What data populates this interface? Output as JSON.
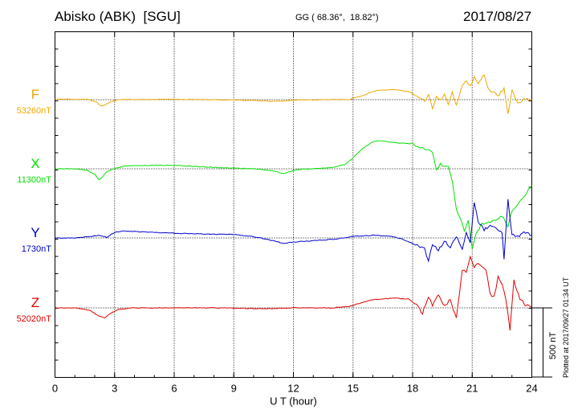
{
  "header": {
    "station": "Abisko (ABK)  [SGU]",
    "coords": "GG ( 68.36°,  18.82°)",
    "date": "2017/08/27"
  },
  "footer_note": "Plotted at 2017/09/27 01:34 UT",
  "colors": {
    "F": "#f0a800",
    "X": "#00e000",
    "Y": "#0000d0",
    "Z": "#e00000"
  },
  "chart_data": {
    "type": "line",
    "xlabel": "U T (hour)",
    "xlim": [
      0,
      24
    ],
    "xticks": [
      "0",
      "3",
      "6",
      "9",
      "12",
      "15",
      "18",
      "21",
      "24"
    ],
    "scale_bar": {
      "label": "500 nT",
      "value_nT": 500
    },
    "series": [
      {
        "name": "F",
        "baseline_label": "53260nT",
        "x": [
          0,
          1,
          1.7,
          2.1,
          2.3,
          2.5,
          2.8,
          3.2,
          4,
          6,
          8,
          10,
          11,
          11.5,
          12,
          14,
          14.8,
          15.5,
          16,
          16.5,
          17,
          17.5,
          17.9,
          18.2,
          18.6,
          18.8,
          19,
          19.2,
          19.4,
          19.6,
          19.8,
          20,
          20.2,
          20.5,
          20.7,
          20.9,
          21.1,
          21.3,
          21.6,
          21.8,
          22,
          22.3,
          22.6,
          22.8,
          23,
          23.3,
          23.6,
          24
        ],
        "y": [
          5,
          3,
          2,
          -20,
          -45,
          -40,
          -15,
          0,
          2,
          3,
          0,
          -5,
          -12,
          -10,
          -2,
          0,
          2,
          30,
          60,
          70,
          75,
          65,
          55,
          20,
          -5,
          30,
          -60,
          30,
          -10,
          40,
          -30,
          55,
          -40,
          110,
          140,
          100,
          160,
          120,
          180,
          80,
          60,
          30,
          80,
          -110,
          70,
          -30,
          10,
          0
        ]
      },
      {
        "name": "X",
        "baseline_label": "11300nT",
        "x": [
          0,
          1,
          1.6,
          2,
          2.2,
          2.4,
          2.6,
          3,
          3.5,
          4.5,
          6,
          8,
          10,
          11,
          11.5,
          11.8,
          12.3,
          13,
          14,
          14.6,
          15,
          15.5,
          16,
          16.3,
          17,
          18,
          18.5,
          19,
          19.2,
          19.4,
          19.6,
          19.8,
          20,
          20.2,
          20.4,
          20.6,
          20.8,
          21,
          21.2,
          21.5,
          22,
          22.5,
          22.8,
          23,
          23.3,
          23.6,
          24
        ],
        "y": [
          0,
          0,
          -10,
          -40,
          -80,
          -60,
          -20,
          0,
          20,
          25,
          25,
          10,
          0,
          -15,
          -35,
          -20,
          -5,
          0,
          10,
          30,
          80,
          150,
          195,
          205,
          190,
          180,
          150,
          120,
          -10,
          40,
          10,
          20,
          -100,
          -300,
          -350,
          -450,
          -380,
          -580,
          -460,
          -400,
          -380,
          -340,
          -420,
          -300,
          -260,
          -200,
          -120
        ]
      },
      {
        "name": "Y",
        "baseline_label": "1730nT",
        "x": [
          0,
          1,
          1.8,
          2.2,
          2.6,
          3,
          3.5,
          5,
          7,
          9,
          10,
          11,
          11.5,
          12,
          13,
          14,
          15,
          16,
          17,
          17.5,
          18,
          18.3,
          18.6,
          18.8,
          19,
          19.3,
          19.6,
          19.9,
          20.2,
          20.5,
          20.7,
          20.9,
          21.1,
          21.3,
          21.6,
          21.9,
          22.2,
          22.5,
          22.6,
          22.8,
          23,
          23.3,
          23.6,
          24
        ],
        "y": [
          0,
          0,
          10,
          20,
          5,
          40,
          50,
          40,
          30,
          25,
          10,
          -20,
          -40,
          -30,
          -20,
          -10,
          10,
          20,
          10,
          -10,
          -40,
          -60,
          -80,
          -160,
          -40,
          -90,
          -20,
          -70,
          10,
          -80,
          40,
          -40,
          260,
          120,
          60,
          90,
          70,
          40,
          -150,
          280,
          20,
          10,
          40,
          20
        ]
      },
      {
        "name": "Z",
        "baseline_label": "52020nT",
        "x": [
          0,
          1,
          1.8,
          2.2,
          2.5,
          2.8,
          3.2,
          4,
          6,
          8,
          10,
          11,
          12,
          14,
          14.8,
          15.5,
          16,
          17,
          17.8,
          18.2,
          18.5,
          18.8,
          19,
          19.3,
          19.6,
          19.9,
          20.2,
          20.5,
          20.7,
          20.9,
          21.1,
          21.3,
          21.5,
          21.7,
          21.9,
          22.1,
          22.3,
          22.5,
          22.7,
          22.9,
          23.1,
          23.4,
          23.7,
          24
        ],
        "y": [
          0,
          0,
          -20,
          -60,
          -70,
          -40,
          -10,
          0,
          0,
          0,
          -5,
          -5,
          0,
          0,
          10,
          40,
          60,
          70,
          65,
          20,
          -40,
          80,
          20,
          90,
          10,
          60,
          -80,
          280,
          250,
          380,
          290,
          330,
          300,
          280,
          100,
          80,
          220,
          180,
          60,
          -160,
          200,
          60,
          20,
          0
        ]
      }
    ]
  }
}
